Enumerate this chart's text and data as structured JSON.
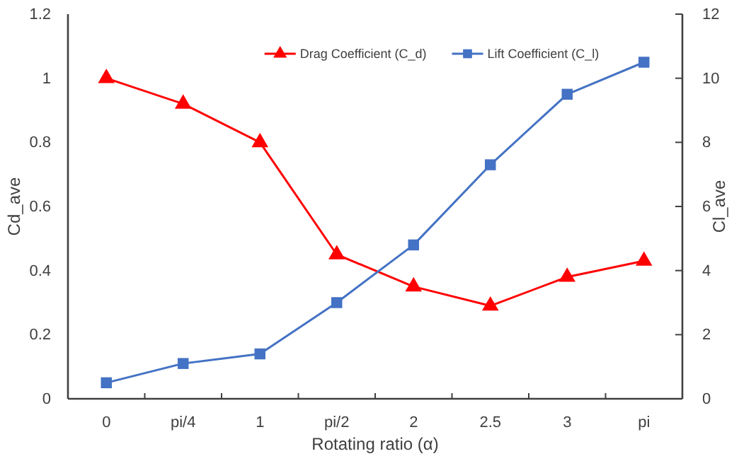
{
  "chart_data": {
    "type": "line",
    "xlabel": "Rotating ratio (α)",
    "ylabel": "Cd_ave",
    "y2label": "Cl_ave",
    "categories": [
      "0",
      "pi/4",
      "1",
      "pi/2",
      "2",
      "2.5",
      "3",
      "pi"
    ],
    "series": [
      {
        "name": "Drag Coefficient (C_d)",
        "color": "#ff0000",
        "marker": "triangle",
        "values": [
          1.0,
          0.92,
          0.8,
          0.45,
          0.35,
          0.29,
          0.38,
          0.43
        ]
      },
      {
        "name": "Lift Coefficient (C_l)",
        "color": "#4472c4",
        "marker": "square",
        "axis": "y2",
        "values": [
          0.5,
          1.1,
          1.4,
          3.0,
          4.8,
          7.3,
          9.5,
          10.5
        ]
      }
    ],
    "ylim": [
      0,
      1.2
    ],
    "yticks": [
      0,
      0.2,
      0.4,
      0.6,
      0.8,
      1,
      1.2
    ],
    "y2lim": [
      0,
      12
    ],
    "y2ticks": [
      0,
      2,
      4,
      6,
      8,
      10,
      12
    ],
    "grid": false,
    "legend": "top",
    "line_style": "solid"
  }
}
